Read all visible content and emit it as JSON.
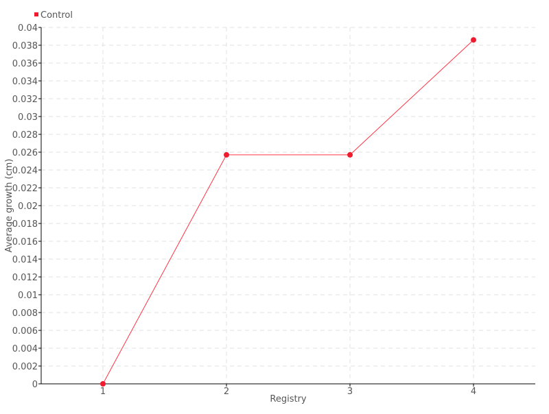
{
  "chart_data": {
    "type": "line",
    "title": "",
    "xlabel": "Registry",
    "ylabel": "Average growth (cm)",
    "categories": [
      "1",
      "2",
      "3",
      "4"
    ],
    "series": [
      {
        "name": "Control",
        "values": [
          0,
          0.0257,
          0.0257,
          0.0386
        ],
        "color": "#ee1c2e"
      }
    ],
    "ylim": [
      0,
      0.04
    ],
    "yticks": [
      "0",
      "0.002",
      "0.004",
      "0.006",
      "0.008",
      "0.01",
      "0.012",
      "0.014",
      "0.016",
      "0.018",
      "0.02",
      "0.022",
      "0.024",
      "0.026",
      "0.028",
      "0.03",
      "0.032",
      "0.034",
      "0.036",
      "0.038",
      "0.04"
    ],
    "grid": true,
    "legend_position": "top-left"
  }
}
